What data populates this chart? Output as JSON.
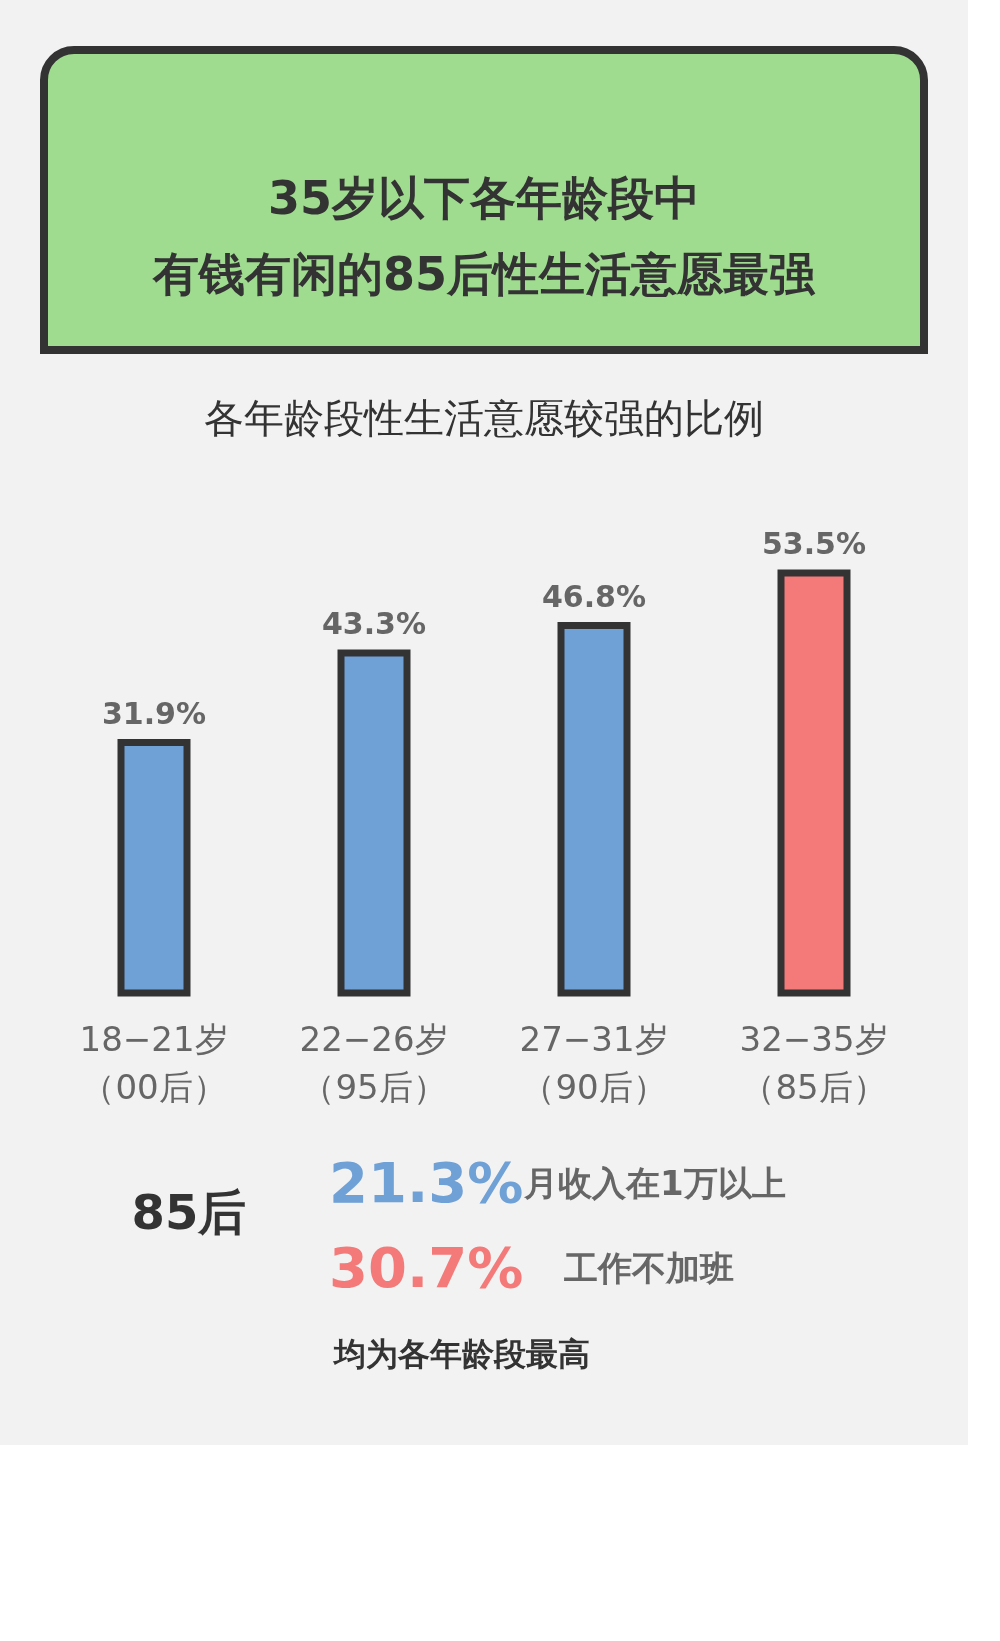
{
  "chart_data": {
    "type": "bar",
    "title": "35岁以下各年龄段中有钱有闲的85后性生活意愿最强",
    "subtitle": "各年龄段性生活意愿较强的比例",
    "categories": [
      "18−21岁（00后）",
      "22−26岁（95后）",
      "27−31岁（90后）",
      "32−35岁（85后）"
    ],
    "values": [
      31.9,
      43.3,
      46.8,
      53.5
    ],
    "colors": [
      "#6fa0d6",
      "#6fa0d6",
      "#6fa0d6",
      "#f47a7a"
    ],
    "value_labels": [
      "31.9%",
      "43.3%",
      "46.8%",
      "53.5%"
    ],
    "annotations": [
      "85后",
      "21.3%",
      "月收入在1万以上",
      "30.7%",
      "工作不加班",
      "均为各年龄段最高"
    ]
  }
}
